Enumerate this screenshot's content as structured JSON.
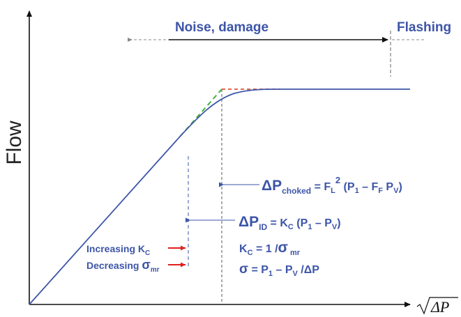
{
  "axes": {
    "y_label": "Flow",
    "x_label": "ΔP"
  },
  "regions": {
    "noise": "Noise, damage",
    "flashing": "Flashing"
  },
  "equations": {
    "choked": {
      "lhs": "ΔP",
      "lhs_sub": "choked",
      "rhs_a": " = F",
      "rhs_a_sub": "L",
      "rhs_a_sup": "2",
      "rhs_b": " (P",
      "rhs_b_sub": "1",
      "rhs_c": " – F",
      "rhs_c_sub": "F",
      "rhs_d": " P",
      "rhs_d_sub": "V",
      "rhs_e": ")"
    },
    "incipient": {
      "lhs": "ΔP",
      "lhs_sub": "ID",
      "rhs_a": " = K",
      "rhs_a_sub": "C",
      "rhs_b": " (P",
      "rhs_b_sub": "1",
      "rhs_c": " – P",
      "rhs_c_sub": "V",
      "rhs_d": ")"
    },
    "kc": {
      "a": "K",
      "a_sub": "C",
      "b": " = 1 /",
      "c": "σ",
      "c_sub": " mr"
    },
    "sigma": {
      "a": "σ",
      "b": " = P",
      "b_sub": "1",
      "c": " – P",
      "c_sub": "V",
      "d": " /ΔP"
    }
  },
  "markers": {
    "increasing": "Increasing K",
    "increasing_sub": "C",
    "decreasing": "Decreasing ",
    "decreasing_sym": "σ",
    "decreasing_sub": "mr"
  },
  "colors": {
    "curve": "#3d55a8",
    "text": "#3d55a8",
    "axis": "#111111",
    "tangent_green": "#3fb03a",
    "flat_red": "#e0543a",
    "arrow_red": "#e01e1e"
  }
}
